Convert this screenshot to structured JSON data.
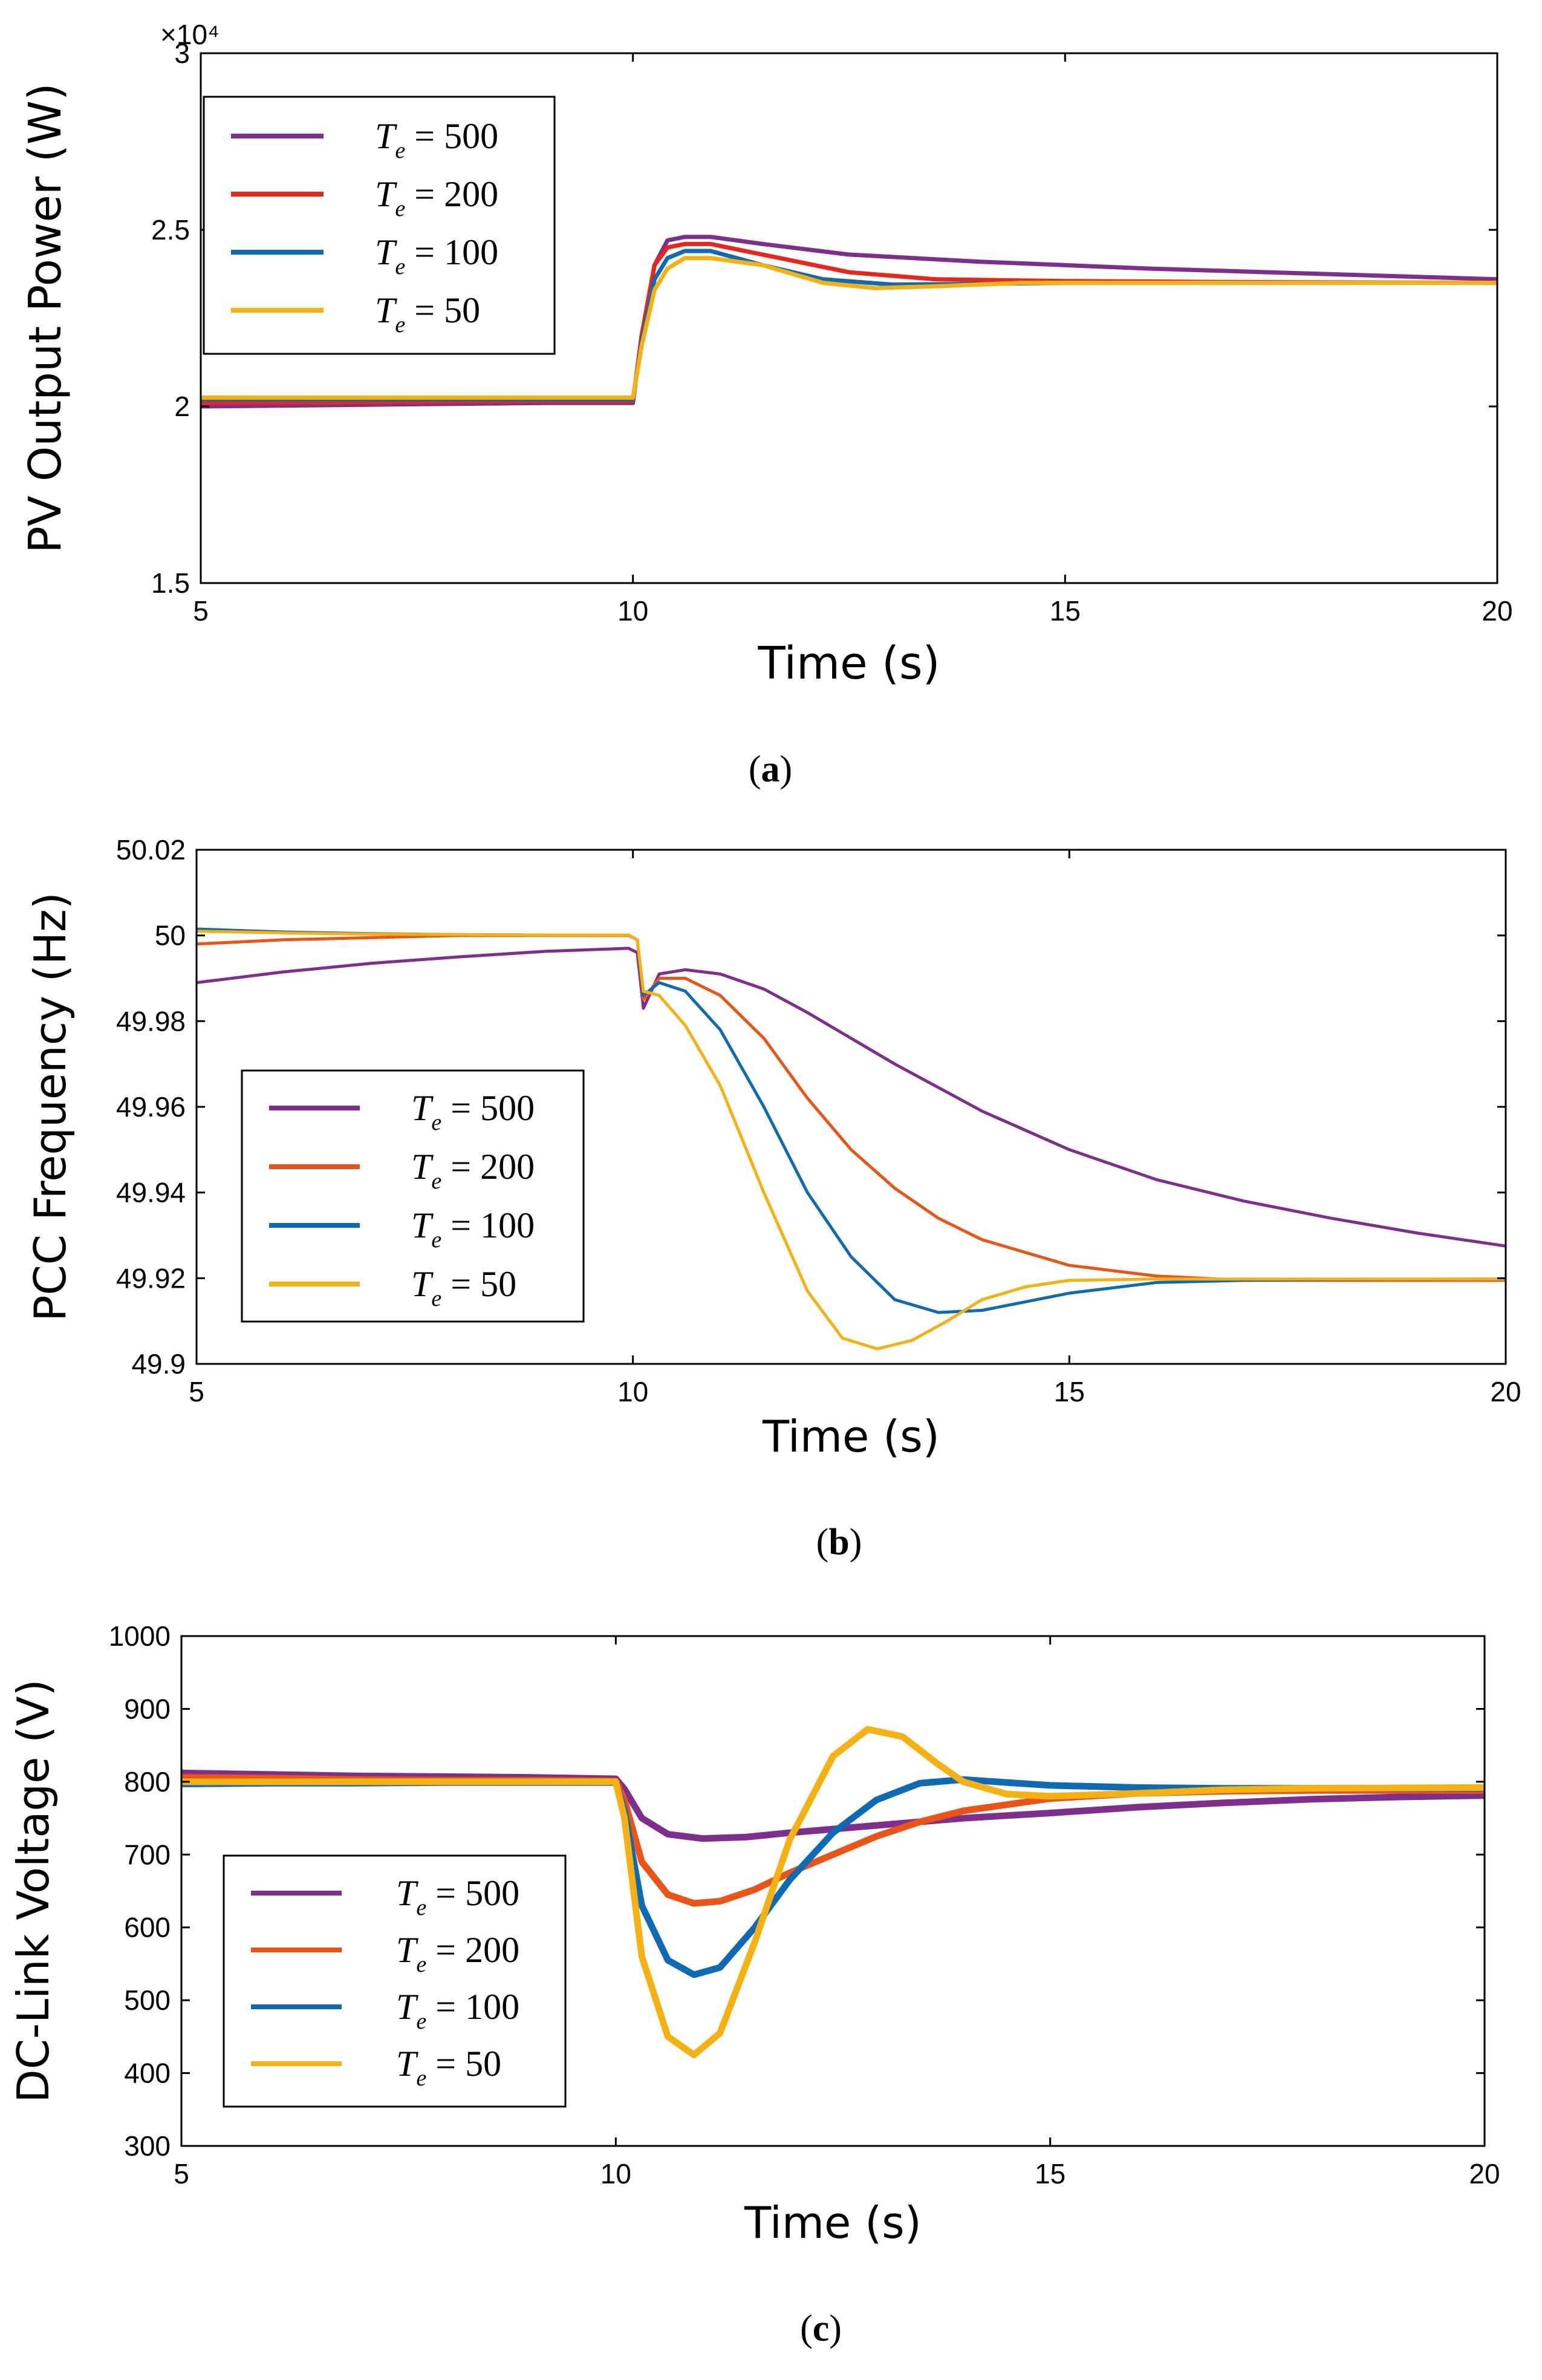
{
  "chart_data": [
    {
      "panel": "a",
      "caption": "(a)",
      "type": "line",
      "xlabel": "Time (s)",
      "ylabel": "PV Output Power (W)",
      "exponent_label": "×10⁴",
      "xlim": [
        5,
        20
      ],
      "ylim": [
        1.5,
        3.0
      ],
      "xticks": [
        5,
        10,
        15,
        20
      ],
      "yticks": [
        1.5,
        2.0,
        2.5,
        3.0
      ],
      "ytick_labels": [
        "1.5",
        "2",
        "2.5",
        "3"
      ],
      "legend_location": "top-left",
      "grid": false,
      "series": [
        {
          "name": "Te = 500",
          "symbol": "T",
          "subscript": "e",
          "value_text": " = 500",
          "color": "#7e2f8e",
          "width": 7,
          "x": [
            5,
            7,
            9,
            10,
            10.1,
            10.25,
            10.4,
            10.6,
            10.9,
            11.5,
            12.5,
            14,
            16,
            18,
            20
          ],
          "y": [
            2.0,
            2.005,
            2.01,
            2.01,
            2.2,
            2.4,
            2.47,
            2.48,
            2.48,
            2.46,
            2.43,
            2.41,
            2.39,
            2.375,
            2.36
          ]
        },
        {
          "name": "Te = 200",
          "symbol": "T",
          "subscript": "e",
          "value_text": " = 200",
          "color": "#e8261b",
          "width": 7,
          "x": [
            5,
            7,
            9,
            10,
            10.1,
            10.25,
            10.4,
            10.6,
            10.9,
            11.5,
            12.5,
            13.5,
            15,
            17,
            20
          ],
          "y": [
            2.01,
            2.012,
            2.015,
            2.015,
            2.2,
            2.4,
            2.45,
            2.46,
            2.46,
            2.43,
            2.38,
            2.36,
            2.355,
            2.352,
            2.35
          ]
        },
        {
          "name": "Te = 100",
          "symbol": "T",
          "subscript": "e",
          "value_text": " = 100",
          "color": "#0e6bb3",
          "width": 7,
          "x": [
            5,
            7,
            9,
            10,
            10.1,
            10.25,
            10.4,
            10.6,
            10.9,
            11.5,
            12.2,
            13,
            14,
            15,
            17,
            20
          ],
          "y": [
            2.02,
            2.02,
            2.02,
            2.02,
            2.18,
            2.36,
            2.42,
            2.44,
            2.44,
            2.4,
            2.36,
            2.345,
            2.347,
            2.35,
            2.35,
            2.35
          ]
        },
        {
          "name": "Te = 50",
          "symbol": "T",
          "subscript": "e",
          "value_text": " = 50",
          "color": "#f5b112",
          "width": 7,
          "x": [
            5,
            7,
            9,
            10,
            10.1,
            10.25,
            10.4,
            10.6,
            10.9,
            11.5,
            12.2,
            12.8,
            13.5,
            14.5,
            16,
            20
          ],
          "y": [
            2.025,
            2.025,
            2.025,
            2.025,
            2.17,
            2.33,
            2.39,
            2.42,
            2.42,
            2.4,
            2.35,
            2.335,
            2.34,
            2.35,
            2.35,
            2.35
          ]
        }
      ]
    },
    {
      "panel": "b",
      "caption": "(b)",
      "type": "line",
      "xlabel": "Time (s)",
      "ylabel": "PCC Frequency (Hz)",
      "xlim": [
        5,
        20
      ],
      "ylim": [
        49.9,
        50.02
      ],
      "xticks": [
        5,
        10,
        15,
        20
      ],
      "yticks": [
        49.9,
        49.92,
        49.94,
        49.96,
        49.98,
        50.0,
        50.02
      ],
      "ytick_labels": [
        "49.9",
        "49.92",
        "49.94",
        "49.96",
        "49.98",
        "50",
        "50.02"
      ],
      "legend_location": "bottom-left",
      "grid": false,
      "series": [
        {
          "name": "Te = 500",
          "symbol": "T",
          "subscript": "e",
          "value_text": " = 500",
          "color": "#7e2f8e",
          "width": 5,
          "x": [
            5,
            6,
            7,
            8,
            9,
            9.95,
            10.05,
            10.12,
            10.3,
            10.6,
            11,
            11.5,
            12,
            12.5,
            13,
            13.5,
            14,
            15,
            16,
            17,
            18,
            19,
            20
          ],
          "y": [
            49.989,
            49.9915,
            49.9935,
            49.995,
            49.9963,
            49.997,
            49.996,
            49.983,
            49.991,
            49.992,
            49.991,
            49.9875,
            49.982,
            49.976,
            49.97,
            49.9645,
            49.959,
            49.95,
            49.943,
            49.938,
            49.934,
            49.9305,
            49.9275
          ]
        },
        {
          "name": "Te = 200",
          "symbol": "T",
          "subscript": "e",
          "value_text": " = 200",
          "color": "#ea5416",
          "width": 5,
          "x": [
            5,
            6,
            7,
            8,
            9,
            9.95,
            10.05,
            10.12,
            10.3,
            10.6,
            11,
            11.5,
            12,
            12.5,
            13,
            13.5,
            14,
            15,
            16,
            17,
            18,
            20
          ],
          "y": [
            49.998,
            49.999,
            49.9995,
            50.0,
            50.0,
            50.0,
            49.999,
            49.985,
            49.99,
            49.99,
            49.986,
            49.976,
            49.962,
            49.95,
            49.941,
            49.934,
            49.929,
            49.923,
            49.9205,
            49.9195,
            49.9195,
            49.9195
          ]
        },
        {
          "name": "Te = 100",
          "symbol": "T",
          "subscript": "e",
          "value_text": " = 100",
          "color": "#0e6bb3",
          "width": 5,
          "x": [
            5,
            6,
            7,
            8,
            9,
            9.95,
            10.05,
            10.12,
            10.3,
            10.6,
            11,
            11.5,
            12,
            12.5,
            13,
            13.5,
            14,
            14.5,
            15,
            16,
            17,
            18,
            20
          ],
          "y": [
            50.0015,
            50.0008,
            50.0004,
            50.0002,
            50.0001,
            50.0001,
            49.999,
            49.986,
            49.989,
            49.987,
            49.978,
            49.96,
            49.94,
            49.925,
            49.915,
            49.912,
            49.9125,
            49.9145,
            49.9165,
            49.919,
            49.9195,
            49.9197,
            49.9198
          ]
        },
        {
          "name": "Te = 50",
          "symbol": "T",
          "subscript": "e",
          "value_text": " = 50",
          "color": "#f5b112",
          "width": 5,
          "x": [
            5,
            6,
            7,
            8,
            9,
            9.95,
            10.05,
            10.12,
            10.3,
            10.6,
            11,
            11.5,
            12,
            12.4,
            12.8,
            13.2,
            13.6,
            14,
            14.5,
            15,
            16,
            17,
            18,
            20
          ],
          "y": [
            50.001,
            50.0006,
            50.0003,
            50.0002,
            50.0001,
            50.0001,
            49.999,
            49.987,
            49.986,
            49.979,
            49.965,
            49.94,
            49.917,
            49.906,
            49.9035,
            49.9055,
            49.91,
            49.915,
            49.918,
            49.9195,
            49.9198,
            49.9198,
            49.9198,
            49.9198
          ]
        }
      ]
    },
    {
      "panel": "c",
      "caption": "(c)",
      "type": "line",
      "xlabel": "Time (s)",
      "ylabel": "DC-Link Voltage (V)",
      "xlim": [
        5,
        20
      ],
      "ylim": [
        300,
        1000
      ],
      "xticks": [
        5,
        10,
        15,
        20
      ],
      "yticks": [
        300,
        400,
        500,
        600,
        700,
        800,
        900,
        1000
      ],
      "ytick_labels": [
        "300",
        "400",
        "500",
        "600",
        "700",
        "800",
        "900",
        "1000"
      ],
      "legend_location": "bottom-left",
      "grid": false,
      "series": [
        {
          "name": "Te = 500",
          "symbol": "T",
          "subscript": "e",
          "value_text": " = 500",
          "color": "#7e2f8e",
          "width": 11,
          "x": [
            5,
            6,
            7,
            8,
            9,
            10,
            10.1,
            10.3,
            10.6,
            11,
            11.5,
            12,
            13,
            14,
            15,
            16,
            17,
            18,
            19,
            20
          ],
          "y": [
            812,
            810,
            808,
            807,
            806,
            804,
            790,
            750,
            728,
            722,
            724,
            730,
            740,
            750,
            757,
            765,
            771,
            776,
            779,
            781
          ]
        },
        {
          "name": "Te = 200",
          "symbol": "T",
          "subscript": "e",
          "value_text": " = 200",
          "color": "#ea5416",
          "width": 11,
          "x": [
            5,
            6,
            7,
            8,
            9,
            10,
            10.1,
            10.3,
            10.6,
            10.9,
            11.2,
            11.6,
            12,
            12.5,
            13,
            13.5,
            14,
            15,
            16,
            17,
            18,
            20
          ],
          "y": [
            806,
            805,
            803,
            802,
            802,
            801,
            775,
            690,
            645,
            633,
            636,
            652,
            675,
            700,
            725,
            745,
            760,
            777,
            784,
            787,
            788,
            788
          ]
        },
        {
          "name": "Te = 100",
          "symbol": "T",
          "subscript": "e",
          "value_text": " = 100",
          "color": "#0e6bb3",
          "width": 11,
          "x": [
            5,
            6,
            7,
            8,
            9,
            10,
            10.1,
            10.3,
            10.6,
            10.9,
            11.2,
            11.6,
            12,
            12.5,
            13,
            13.5,
            14,
            14.5,
            15,
            16,
            17,
            18,
            20
          ],
          "y": [
            797,
            798,
            798,
            799,
            799,
            799,
            760,
            630,
            555,
            535,
            545,
            600,
            665,
            730,
            775,
            798,
            803,
            799,
            795,
            792,
            791,
            791,
            791
          ]
        },
        {
          "name": "Te = 50",
          "symbol": "T",
          "subscript": "e",
          "value_text": " = 50",
          "color": "#f5b112",
          "width": 11,
          "x": [
            5,
            6,
            7,
            8,
            9,
            10,
            10.1,
            10.3,
            10.6,
            10.9,
            11.2,
            11.6,
            12,
            12.5,
            12.9,
            13.3,
            13.7,
            14,
            14.5,
            15,
            16,
            17,
            18,
            20
          ],
          "y": [
            800,
            800,
            800,
            800,
            800,
            800,
            750,
            560,
            450,
            425,
            455,
            580,
            720,
            835,
            872,
            862,
            825,
            800,
            783,
            780,
            784,
            789,
            791,
            792
          ]
        }
      ]
    }
  ]
}
